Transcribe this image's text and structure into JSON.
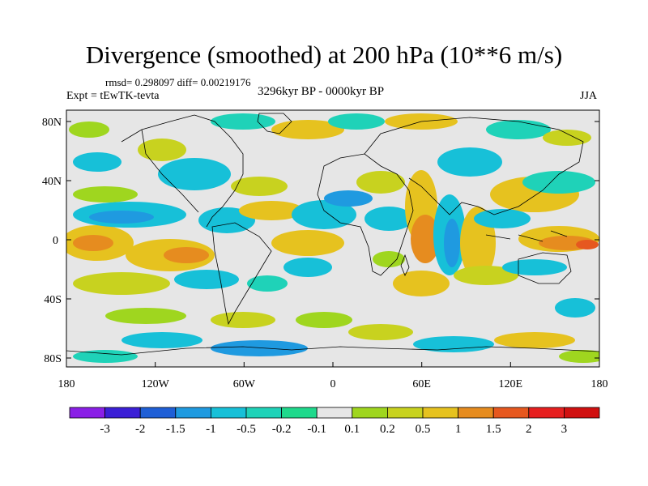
{
  "title": "Divergence (smoothed) at 200 hPa (10**6 m/s)",
  "stats": "rmsd= 0.298097 diff= 0.00219176",
  "experiment": "Expt = tEwTK-tevta",
  "period": "3296kyr BP - 0000kyr BP",
  "season": "JJA",
  "axes": {
    "lat_labels": [
      "80N",
      "40N",
      "0",
      "40S",
      "80S"
    ],
    "lon_labels": [
      "180",
      "120W",
      "60W",
      "0",
      "60E",
      "120E",
      "180"
    ]
  },
  "colorbar": {
    "labels": [
      "-3",
      "-2",
      "-1.5",
      "-1",
      "-0.5",
      "-0.2",
      "-0.1",
      "0.1",
      "0.2",
      "0.5",
      "1",
      "1.5",
      "2",
      "3"
    ],
    "colors": [
      "#8a1fe6",
      "#3b1fd6",
      "#1f5fd6",
      "#1f9ae0",
      "#17c0d8",
      "#1fd2b8",
      "#1fd98c",
      "#e6e6e6",
      "#9fd61f",
      "#c8d21f",
      "#e6c21f",
      "#e68c1f",
      "#e6581f",
      "#e61f1f",
      "#d01010"
    ]
  },
  "colors": {
    "land_bg": "#e6e6e6",
    "frame": "#000000"
  }
}
